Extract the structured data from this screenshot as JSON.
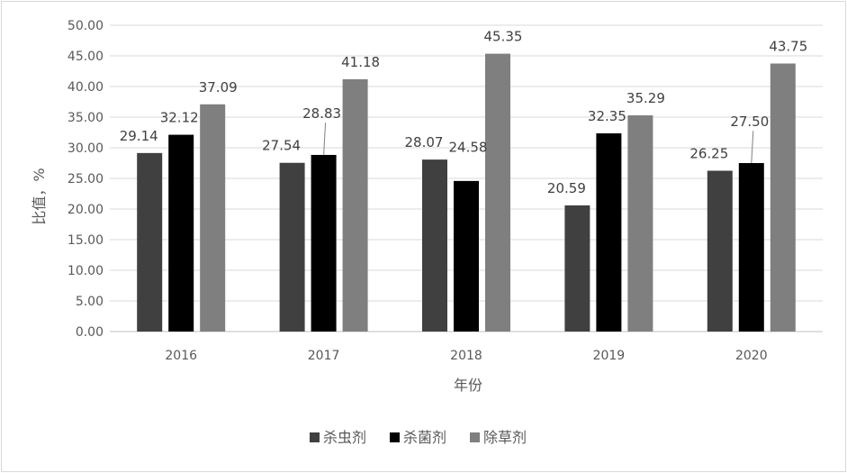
{
  "chart_data": {
    "type": "bar",
    "categories": [
      "2016",
      "2017",
      "2018",
      "2019",
      "2020"
    ],
    "series": [
      {
        "name": "杀虫剂",
        "values": [
          29.14,
          27.54,
          28.07,
          20.59,
          26.25
        ],
        "color": "#404040"
      },
      {
        "name": "杀菌剂",
        "values": [
          32.12,
          28.83,
          24.58,
          32.35,
          27.5
        ],
        "color": "#000000"
      },
      {
        "name": "除草剂",
        "values": [
          37.09,
          41.18,
          45.35,
          35.29,
          43.75
        ],
        "color": "#7f7f7f"
      }
    ],
    "xlabel": "年份",
    "ylabel": "比值，%",
    "ylim": [
      0,
      50
    ],
    "ytick_step": 5,
    "ytick_labels": [
      "0.00",
      "5.00",
      "10.00",
      "15.00",
      "20.00",
      "25.00",
      "30.00",
      "35.00",
      "40.00",
      "45.00",
      "50.00"
    ],
    "data_labels": [
      [
        "29.14",
        "27.54",
        "28.07",
        "20.59",
        "26.25"
      ],
      [
        "32.12",
        "28.83",
        "24.58",
        "32.35",
        "27.50"
      ],
      [
        "37.09",
        "41.18",
        "45.35",
        "35.29",
        "43.75"
      ]
    ],
    "grid": true,
    "legend_position": "bottom"
  }
}
